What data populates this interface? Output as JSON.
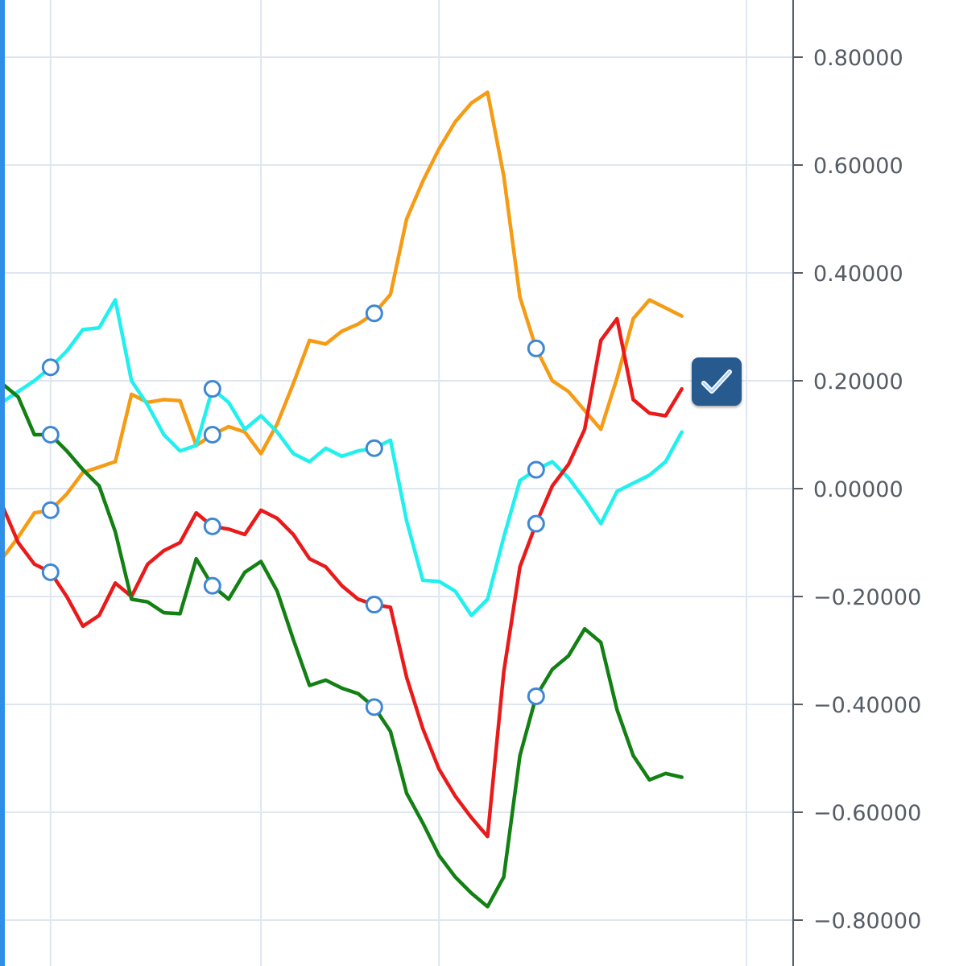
{
  "chart_data": {
    "type": "line",
    "ylim": [
      -0.85,
      0.9
    ],
    "yticks": [
      {
        "value": 0.8,
        "label": "0.80000"
      },
      {
        "value": 0.6,
        "label": "0.60000"
      },
      {
        "value": 0.4,
        "label": "0.40000"
      },
      {
        "value": 0.2,
        "label": "0.20000"
      },
      {
        "value": 0.0,
        "label": "0.00000"
      },
      {
        "value": -0.2,
        "label": "−0.20000"
      },
      {
        "value": -0.4,
        "label": "−0.40000"
      },
      {
        "value": -0.6,
        "label": "−0.60000"
      },
      {
        "value": -0.8,
        "label": "−0.80000"
      }
    ],
    "x": [
      0,
      1,
      2,
      3,
      4,
      5,
      6,
      7,
      8,
      9,
      10,
      11,
      12,
      13,
      14,
      15,
      16,
      17,
      18,
      19,
      20,
      21,
      22,
      23,
      24,
      25,
      26,
      27,
      28,
      29,
      30,
      31,
      32,
      33,
      34,
      35,
      36,
      37,
      38,
      39,
      40,
      41,
      42
    ],
    "x_gridlines": [
      3,
      16,
      27,
      46
    ],
    "marker_x": [
      3,
      13,
      23,
      33
    ],
    "grid": true,
    "series": [
      {
        "color": "#f59b14",
        "values": [
          -0.13,
          -0.09,
          -0.045,
          -0.04,
          -0.01,
          0.03,
          0.04,
          0.05,
          0.175,
          0.16,
          0.165,
          0.163,
          0.08,
          0.1,
          0.115,
          0.105,
          0.065,
          0.12,
          0.195,
          0.275,
          0.268,
          0.292,
          0.305,
          0.325,
          0.36,
          0.5,
          0.57,
          0.63,
          0.68,
          0.715,
          0.735,
          0.58,
          0.355,
          0.26,
          0.2,
          0.18,
          0.145,
          0.11,
          0.205,
          0.315,
          0.35,
          0.335,
          0.32
        ]
      },
      {
        "color": "#20f0ee",
        "values": [
          0.16,
          0.18,
          0.2,
          0.225,
          0.255,
          0.295,
          0.298,
          0.35,
          0.2,
          0.155,
          0.1,
          0.07,
          0.08,
          0.185,
          0.16,
          0.11,
          0.135,
          0.105,
          0.065,
          0.05,
          0.075,
          0.06,
          0.07,
          0.075,
          0.09,
          -0.06,
          -0.17,
          -0.172,
          -0.19,
          -0.235,
          -0.205,
          -0.09,
          0.015,
          0.035,
          0.05,
          0.02,
          -0.02,
          -0.065,
          -0.005,
          0.01,
          0.025,
          0.05,
          0.105
        ]
      },
      {
        "color": "#ea1a1a",
        "values": [
          -0.03,
          -0.1,
          -0.14,
          -0.155,
          -0.2,
          -0.255,
          -0.235,
          -0.175,
          -0.2,
          -0.14,
          -0.115,
          -0.1,
          -0.045,
          -0.07,
          -0.075,
          -0.085,
          -0.04,
          -0.055,
          -0.085,
          -0.13,
          -0.145,
          -0.18,
          -0.205,
          -0.215,
          -0.22,
          -0.35,
          -0.445,
          -0.52,
          -0.57,
          -0.61,
          -0.645,
          -0.34,
          -0.145,
          -0.065,
          0.005,
          0.045,
          0.11,
          0.275,
          0.315,
          0.165,
          0.14,
          0.135,
          0.185
        ]
      },
      {
        "color": "#138013",
        "values": [
          0.195,
          0.17,
          0.1,
          0.1,
          0.07,
          0.035,
          0.005,
          -0.08,
          -0.205,
          -0.21,
          -0.23,
          -0.232,
          -0.13,
          -0.18,
          -0.205,
          -0.155,
          -0.135,
          -0.19,
          -0.28,
          -0.365,
          -0.355,
          -0.37,
          -0.38,
          -0.405,
          -0.45,
          -0.565,
          -0.62,
          -0.68,
          -0.72,
          -0.75,
          -0.775,
          -0.72,
          -0.495,
          -0.385,
          -0.335,
          -0.31,
          -0.26,
          -0.285,
          -0.41,
          -0.495,
          -0.54,
          -0.528,
          -0.535
        ]
      }
    ]
  },
  "controls": {
    "check_icon": "check-icon"
  }
}
